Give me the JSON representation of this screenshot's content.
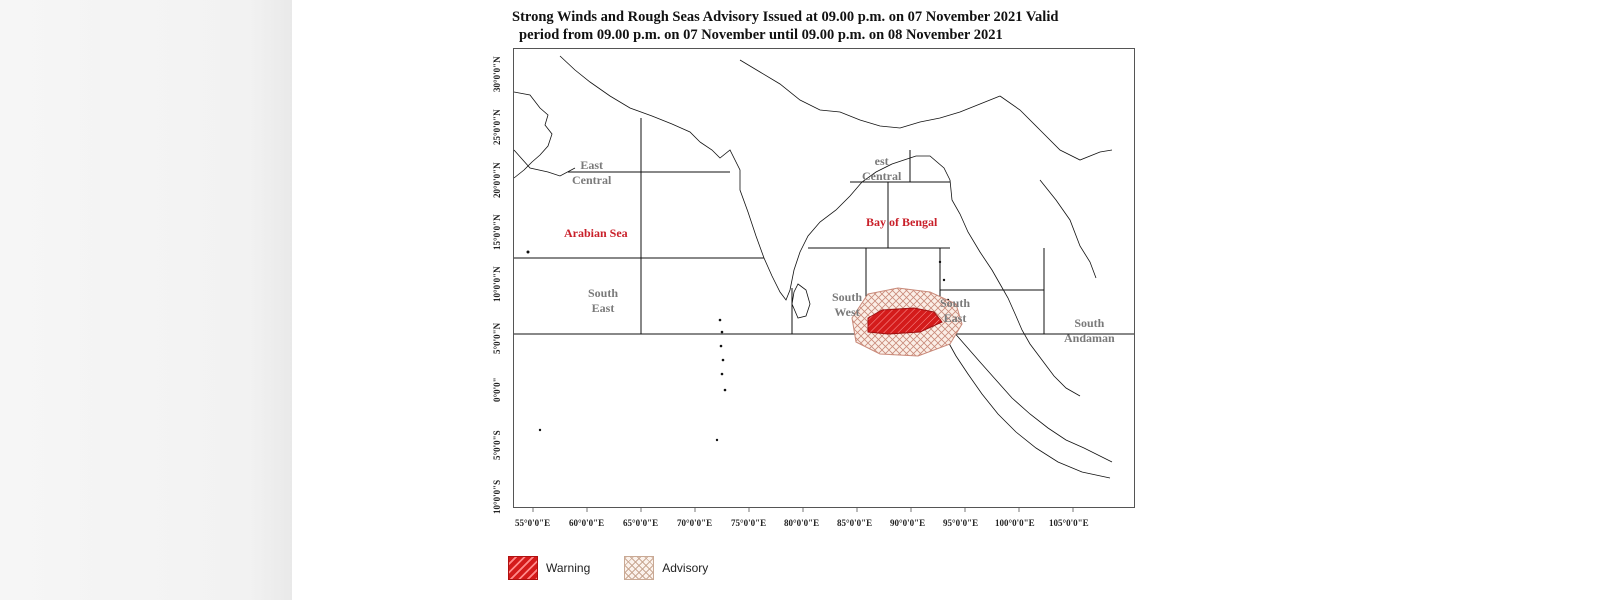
{
  "title": {
    "line1": "Strong Winds and Rough Seas Advisory Issued at 09.00 p.m. on 07 November 2021 Valid",
    "line2": "period from 09.00 p.m. on 07  November until 09.00 p.m. on 08  November 2021"
  },
  "latitude_labels": [
    "30°0'0\"N",
    "25°0'0\"N",
    "20°0'0\"N",
    "15°0'0\"N",
    "10°0'0\"N",
    "5°0'0\"N",
    "0°0'0\"",
    "5°0'0\"S",
    "10°0'0\"S"
  ],
  "longitude_labels": [
    "55°0'0\"E",
    "60°0'0\"E",
    "65°0'0\"E",
    "70°0'0\"E",
    "75°0'0\"E",
    "80°0'0\"E",
    "85°0'0\"E",
    "90°0'0\"E",
    "95°0'0\"E",
    "100°0'0\"E",
    "105°0'0\"E"
  ],
  "regions": {
    "north_east_central": {
      "line1": "East",
      "line2": "Central"
    },
    "arabian_sea": "Arabian Sea",
    "south_east": {
      "line1": "South",
      "line2": "East"
    },
    "bay_west_central": {
      "line1": "est",
      "line2": "Central"
    },
    "bay_of_bengal": "Bay of Bengal",
    "bay_south_west": {
      "line1": "South",
      "line2": "West"
    },
    "bay_south_east": {
      "line1": "South",
      "line2": "East"
    },
    "south_andaman": {
      "line1": "South",
      "line2": "Andaman"
    }
  },
  "legend": {
    "warning": "Warning",
    "advisory": "Advisory"
  },
  "colors": {
    "warning": "#d41b1b",
    "advisory": "#c9a994",
    "region_label": "#7a7a7a",
    "sea_name": "#c9202a"
  }
}
